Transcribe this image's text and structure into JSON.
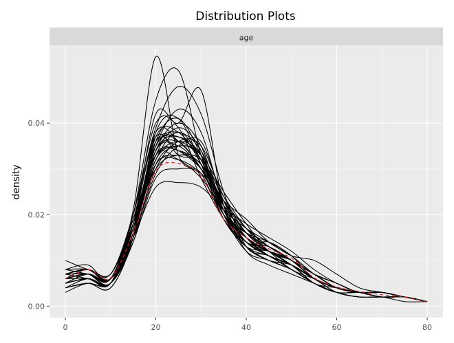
{
  "chart_data": {
    "type": "line",
    "title": "Distribution Plots",
    "facet_label": "age",
    "xlabel": "",
    "ylabel": "density",
    "xlim": [
      -3.5,
      83.5
    ],
    "ylim": [
      -0.0025,
      0.057
    ],
    "x_ticks": [
      0,
      20,
      40,
      60,
      80
    ],
    "y_ticks": [
      0.0,
      0.02,
      0.04
    ],
    "y_tick_labels": [
      "0.00",
      "0.02",
      "0.04"
    ],
    "grid": true,
    "legend": "none",
    "colors": {
      "panel_bg": "#ebebeb",
      "strip_bg": "#d9d9d9",
      "grid_major": "#ffffff",
      "line": "#000000",
      "highlight_line": "#e41a1c"
    },
    "x": [
      0,
      5,
      10,
      15,
      20,
      25,
      30,
      35,
      40,
      45,
      50,
      55,
      60,
      65,
      70,
      75,
      80
    ],
    "reference_series": {
      "values": [
        0.006,
        0.008,
        0.0062,
        0.016,
        0.0295,
        0.0312,
        0.0285,
        0.019,
        0.015,
        0.0125,
        0.0105,
        0.0062,
        0.0042,
        0.0032,
        0.0025,
        0.002,
        0.001
      ]
    },
    "series": [
      {
        "values": [
          0.006,
          0.007,
          0.006,
          0.021,
          0.0545,
          0.033,
          0.029,
          0.019,
          0.014,
          0.011,
          0.008,
          0.005,
          0.003,
          0.003,
          0.003,
          0.002,
          0.001
        ]
      },
      {
        "values": [
          0.005,
          0.006,
          0.005,
          0.02,
          0.045,
          0.0515,
          0.033,
          0.02,
          0.012,
          0.01,
          0.008,
          0.005,
          0.003,
          0.002,
          0.002,
          0.002,
          0.001
        ]
      },
      {
        "values": [
          0.007,
          0.008,
          0.006,
          0.018,
          0.042,
          0.04,
          0.0472,
          0.022,
          0.015,
          0.012,
          0.009,
          0.006,
          0.004,
          0.003,
          0.003,
          0.002,
          0.001
        ]
      },
      {
        "values": [
          0.01,
          0.008,
          0.007,
          0.02,
          0.039,
          0.048,
          0.042,
          0.025,
          0.013,
          0.011,
          0.008,
          0.005,
          0.003,
          0.003,
          0.002,
          0.002,
          0.001
        ]
      },
      {
        "values": [
          0.004,
          0.005,
          0.005,
          0.015,
          0.036,
          0.041,
          0.033,
          0.021,
          0.016,
          0.013,
          0.01,
          0.007,
          0.005,
          0.003,
          0.003,
          0.002,
          0.001
        ]
      },
      {
        "values": [
          0.006,
          0.007,
          0.006,
          0.017,
          0.035,
          0.038,
          0.034,
          0.023,
          0.015,
          0.012,
          0.01,
          0.006,
          0.004,
          0.003,
          0.002,
          0.002,
          0.001
        ]
      },
      {
        "values": [
          0.005,
          0.006,
          0.005,
          0.016,
          0.034,
          0.037,
          0.032,
          0.022,
          0.014,
          0.014,
          0.011,
          0.007,
          0.004,
          0.003,
          0.003,
          0.002,
          0.001
        ]
      },
      {
        "values": [
          0.007,
          0.008,
          0.006,
          0.018,
          0.038,
          0.036,
          0.03,
          0.02,
          0.016,
          0.012,
          0.009,
          0.006,
          0.004,
          0.003,
          0.002,
          0.002,
          0.001
        ]
      },
      {
        "values": [
          0.006,
          0.007,
          0.005,
          0.016,
          0.032,
          0.035,
          0.033,
          0.021,
          0.015,
          0.011,
          0.009,
          0.005,
          0.003,
          0.003,
          0.002,
          0.002,
          0.001
        ]
      },
      {
        "values": [
          0.008,
          0.009,
          0.006,
          0.02,
          0.04,
          0.039,
          0.028,
          0.019,
          0.013,
          0.012,
          0.01,
          0.006,
          0.004,
          0.003,
          0.003,
          0.002,
          0.001
        ]
      },
      {
        "values": [
          0.005,
          0.006,
          0.005,
          0.015,
          0.03,
          0.036,
          0.035,
          0.024,
          0.016,
          0.012,
          0.008,
          0.006,
          0.004,
          0.003,
          0.002,
          0.002,
          0.001
        ]
      },
      {
        "values": [
          0.006,
          0.007,
          0.006,
          0.017,
          0.036,
          0.034,
          0.03,
          0.023,
          0.017,
          0.013,
          0.01,
          0.006,
          0.004,
          0.003,
          0.003,
          0.002,
          0.001
        ]
      },
      {
        "values": [
          0.004,
          0.005,
          0.004,
          0.014,
          0.028,
          0.03,
          0.029,
          0.022,
          0.018,
          0.015,
          0.012,
          0.008,
          0.005,
          0.003,
          0.003,
          0.002,
          0.001
        ]
      },
      {
        "values": [
          0.007,
          0.008,
          0.007,
          0.019,
          0.037,
          0.033,
          0.031,
          0.02,
          0.014,
          0.011,
          0.009,
          0.005,
          0.004,
          0.003,
          0.002,
          0.002,
          0.001
        ]
      },
      {
        "values": [
          0.006,
          0.006,
          0.005,
          0.016,
          0.033,
          0.039,
          0.034,
          0.02,
          0.013,
          0.01,
          0.009,
          0.006,
          0.003,
          0.002,
          0.002,
          0.002,
          0.001
        ]
      },
      {
        "values": [
          0.005,
          0.007,
          0.006,
          0.015,
          0.026,
          0.027,
          0.026,
          0.021,
          0.017,
          0.014,
          0.011,
          0.01,
          0.007,
          0.004,
          0.003,
          0.002,
          0.001
        ]
      },
      {
        "values": [
          0.006,
          0.008,
          0.006,
          0.018,
          0.035,
          0.043,
          0.038,
          0.022,
          0.012,
          0.009,
          0.007,
          0.005,
          0.003,
          0.002,
          0.002,
          0.001,
          0.001
        ]
      },
      {
        "values": [
          0.004,
          0.006,
          0.005,
          0.014,
          0.031,
          0.035,
          0.033,
          0.025,
          0.018,
          0.012,
          0.01,
          0.007,
          0.004,
          0.003,
          0.003,
          0.002,
          0.001
        ]
      },
      {
        "values": [
          0.007,
          0.006,
          0.005,
          0.017,
          0.034,
          0.036,
          0.032,
          0.021,
          0.014,
          0.013,
          0.01,
          0.006,
          0.004,
          0.003,
          0.002,
          0.002,
          0.001
        ]
      },
      {
        "values": [
          0.006,
          0.007,
          0.006,
          0.016,
          0.031,
          0.032,
          0.029,
          0.023,
          0.019,
          0.014,
          0.011,
          0.007,
          0.005,
          0.003,
          0.003,
          0.002,
          0.001
        ]
      },
      {
        "values": [
          0.003,
          0.005,
          0.004,
          0.015,
          0.038,
          0.041,
          0.031,
          0.019,
          0.013,
          0.01,
          0.008,
          0.005,
          0.003,
          0.002,
          0.002,
          0.002,
          0.001
        ]
      },
      {
        "values": [
          0.008,
          0.007,
          0.006,
          0.019,
          0.033,
          0.034,
          0.03,
          0.02,
          0.015,
          0.012,
          0.009,
          0.006,
          0.004,
          0.003,
          0.003,
          0.002,
          0.001
        ]
      },
      {
        "values": [
          0.005,
          0.006,
          0.005,
          0.016,
          0.035,
          0.037,
          0.033,
          0.021,
          0.014,
          0.011,
          0.009,
          0.006,
          0.004,
          0.003,
          0.002,
          0.002,
          0.001
        ]
      },
      {
        "values": [
          0.006,
          0.007,
          0.006,
          0.017,
          0.032,
          0.038,
          0.032,
          0.02,
          0.015,
          0.012,
          0.01,
          0.006,
          0.004,
          0.003,
          0.003,
          0.002,
          0.001
        ]
      },
      {
        "values": [
          0.007,
          0.008,
          0.007,
          0.018,
          0.03,
          0.033,
          0.031,
          0.022,
          0.016,
          0.013,
          0.01,
          0.007,
          0.004,
          0.003,
          0.002,
          0.002,
          0.001
        ]
      },
      {
        "values": [
          0.005,
          0.006,
          0.005,
          0.015,
          0.029,
          0.035,
          0.036,
          0.023,
          0.015,
          0.011,
          0.009,
          0.006,
          0.004,
          0.003,
          0.003,
          0.002,
          0.001
        ]
      },
      {
        "values": [
          0.006,
          0.007,
          0.006,
          0.017,
          0.036,
          0.036,
          0.03,
          0.02,
          0.016,
          0.014,
          0.011,
          0.006,
          0.004,
          0.003,
          0.002,
          0.002,
          0.001
        ]
      },
      {
        "values": [
          0.004,
          0.005,
          0.005,
          0.016,
          0.034,
          0.04,
          0.035,
          0.021,
          0.013,
          0.01,
          0.009,
          0.006,
          0.004,
          0.003,
          0.002,
          0.002,
          0.001
        ]
      },
      {
        "values": [
          0.008,
          0.008,
          0.006,
          0.018,
          0.033,
          0.032,
          0.028,
          0.021,
          0.017,
          0.013,
          0.01,
          0.007,
          0.005,
          0.003,
          0.003,
          0.002,
          0.001
        ]
      },
      {
        "values": [
          0.006,
          0.006,
          0.005,
          0.016,
          0.037,
          0.038,
          0.031,
          0.019,
          0.014,
          0.012,
          0.009,
          0.005,
          0.004,
          0.003,
          0.002,
          0.002,
          0.001
        ]
      },
      {
        "values": [
          0.005,
          0.007,
          0.006,
          0.017,
          0.031,
          0.033,
          0.032,
          0.024,
          0.017,
          0.012,
          0.01,
          0.007,
          0.004,
          0.003,
          0.003,
          0.002,
          0.001
        ]
      },
      {
        "values": [
          0.007,
          0.007,
          0.005,
          0.017,
          0.034,
          0.035,
          0.03,
          0.021,
          0.015,
          0.011,
          0.009,
          0.006,
          0.004,
          0.003,
          0.002,
          0.002,
          0.001
        ]
      },
      {
        "values": [
          0.006,
          0.008,
          0.006,
          0.016,
          0.032,
          0.036,
          0.033,
          0.022,
          0.014,
          0.012,
          0.01,
          0.006,
          0.004,
          0.003,
          0.002,
          0.002,
          0.001
        ]
      },
      {
        "values": [
          0.005,
          0.006,
          0.005,
          0.015,
          0.033,
          0.034,
          0.031,
          0.023,
          0.016,
          0.013,
          0.01,
          0.007,
          0.004,
          0.003,
          0.003,
          0.002,
          0.001
        ]
      },
      {
        "values": [
          0.007,
          0.007,
          0.006,
          0.018,
          0.035,
          0.037,
          0.032,
          0.02,
          0.013,
          0.011,
          0.009,
          0.006,
          0.004,
          0.003,
          0.002,
          0.002,
          0.001
        ]
      }
    ]
  }
}
